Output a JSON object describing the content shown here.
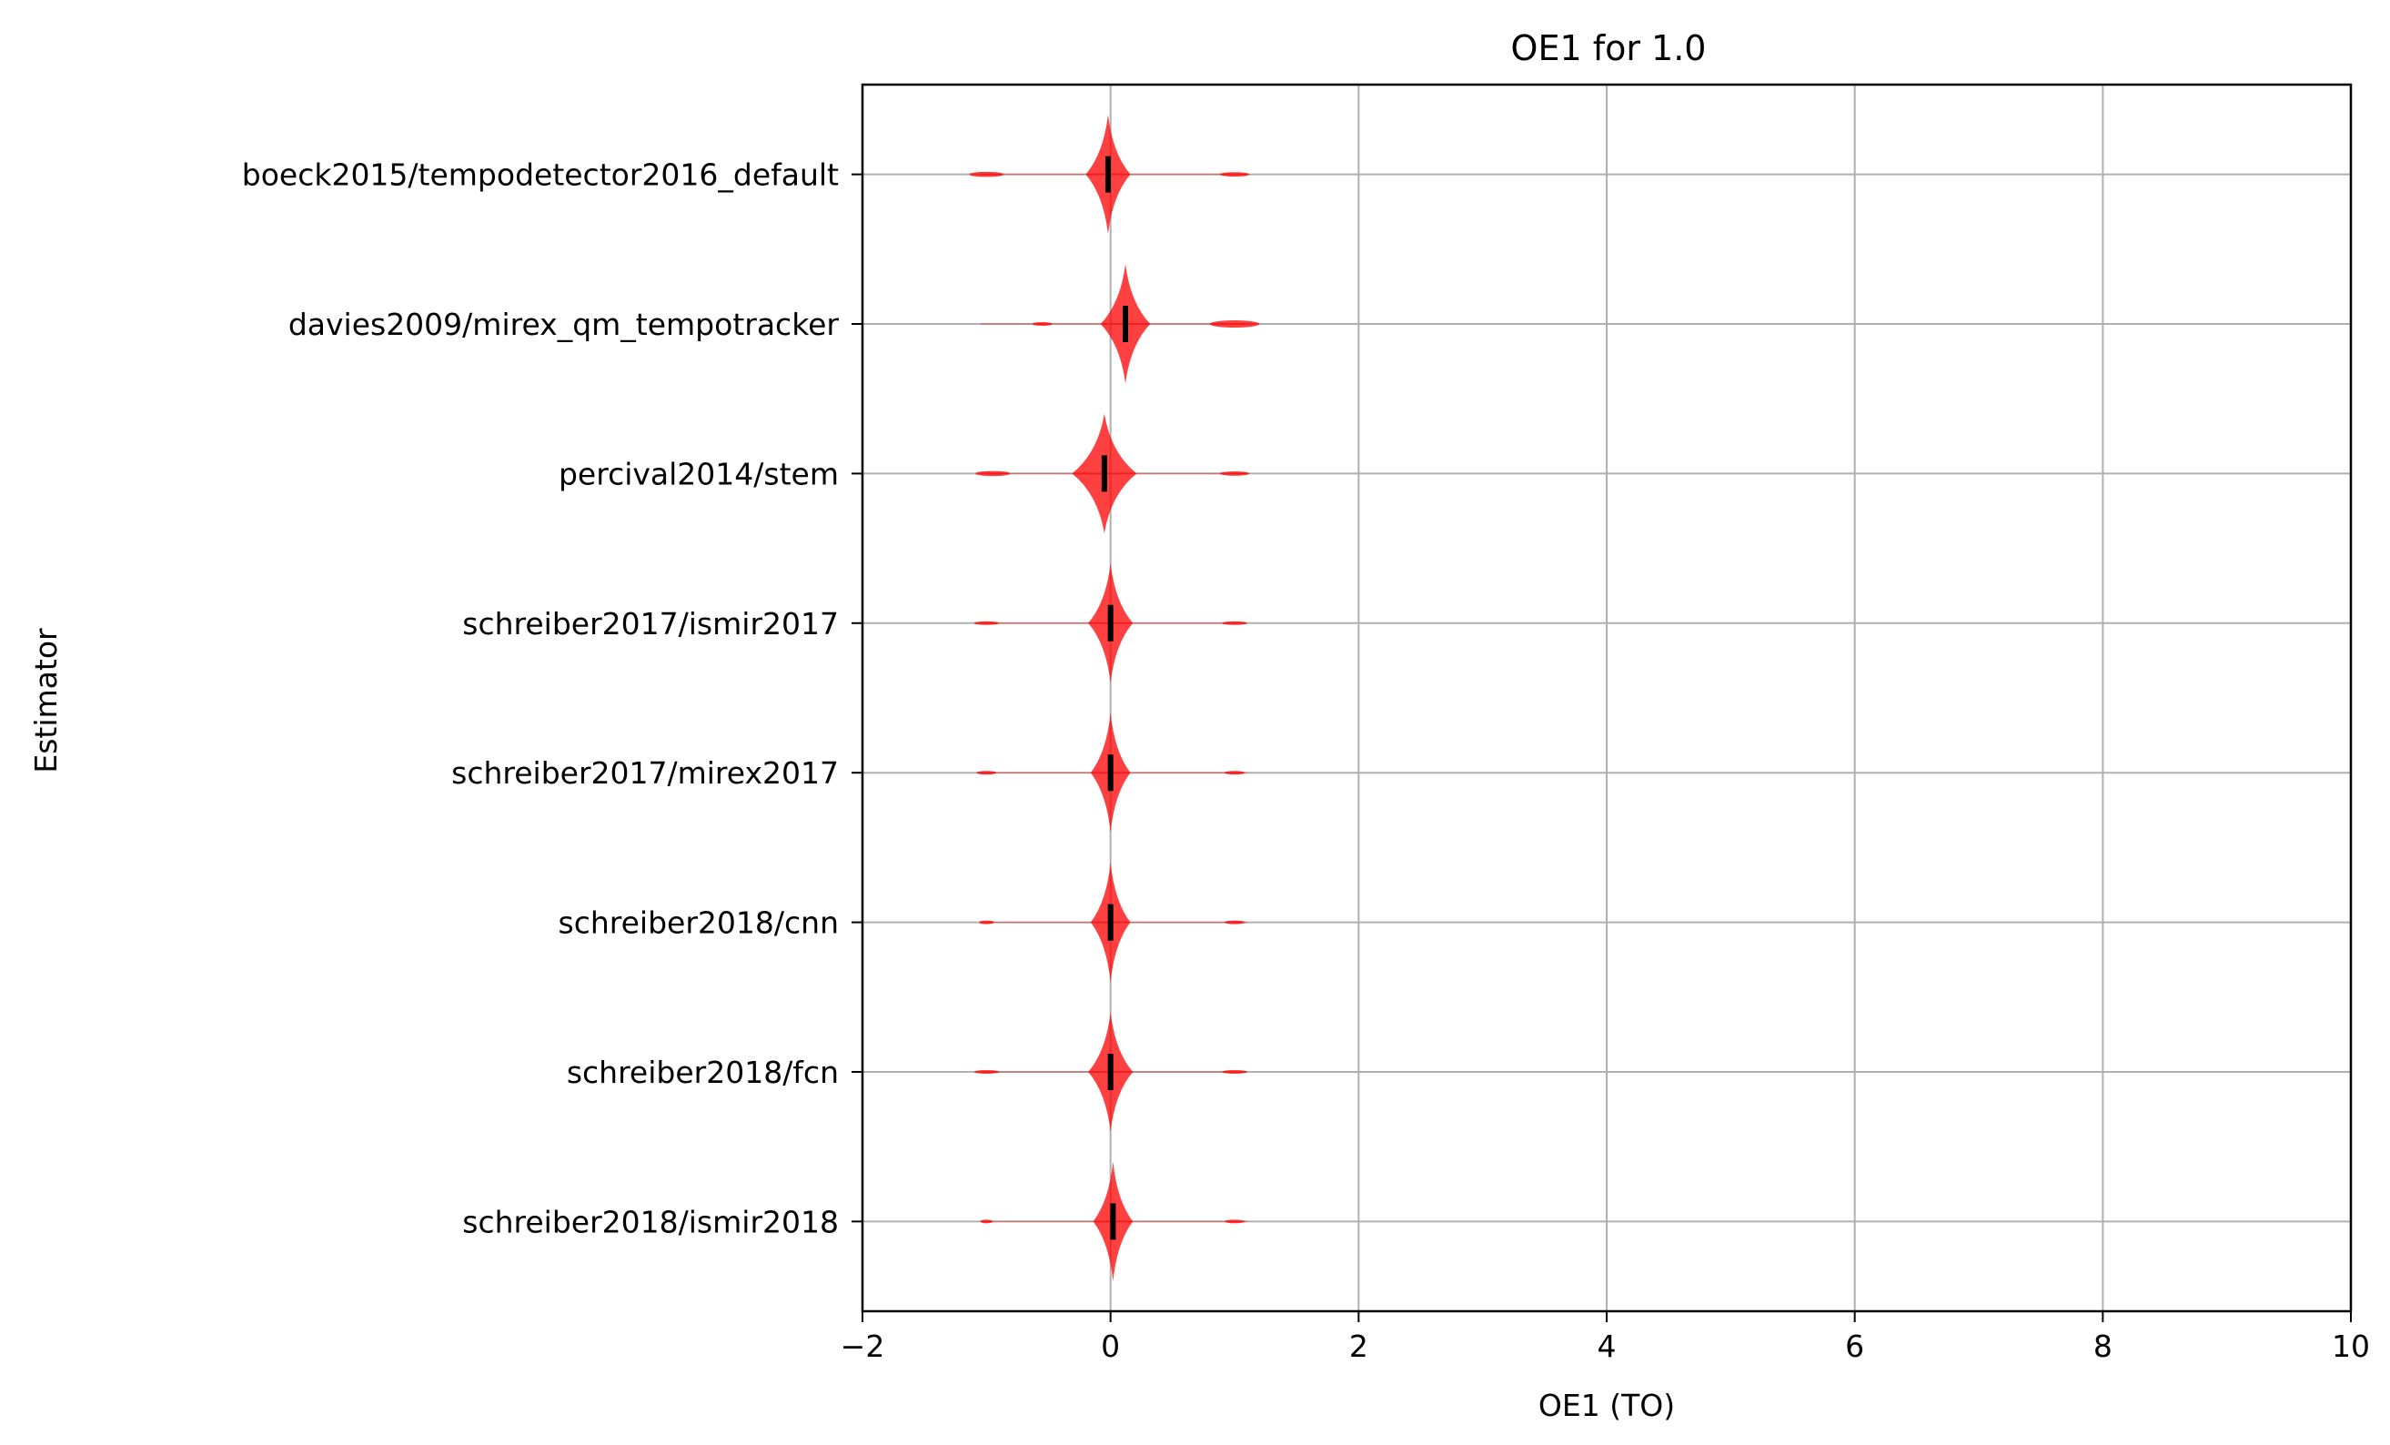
{
  "chart_data": {
    "type": "violin",
    "title": "OE1 for 1.0",
    "xlabel": "OE1 (TO)",
    "ylabel": "Estimator",
    "xlim": [
      -2,
      10
    ],
    "xticks": [
      -2,
      0,
      2,
      4,
      6,
      8,
      10
    ],
    "xtick_labels": [
      "−2",
      "0",
      "2",
      "4",
      "6",
      "8",
      "10"
    ],
    "grid": true,
    "violin_color": "#ff0000",
    "median_color": "#000000",
    "categories": [
      "boeck2015/tempodetector2016_default",
      "davies2009/mirex_qm_tempotracker",
      "percival2014/stem",
      "schreiber2017/ismir2017",
      "schreiber2017/mirex2017",
      "schreiber2018/cnn",
      "schreiber2018/fcn",
      "schreiber2018/ismir2018"
    ],
    "series": [
      {
        "median": -0.02,
        "main_width": 0.18,
        "side_lobes": [
          {
            "x": -1.0,
            "width": 0.14
          },
          {
            "x": 1.0,
            "width": 0.12
          }
        ]
      },
      {
        "median": 0.12,
        "main_width": 0.2,
        "side_lobes": [
          {
            "x": -0.55,
            "width": 0.08
          },
          {
            "x": 1.0,
            "width": 0.2
          }
        ]
      },
      {
        "median": -0.05,
        "main_width": 0.26,
        "side_lobes": [
          {
            "x": -0.95,
            "width": 0.14
          },
          {
            "x": 1.0,
            "width": 0.12
          }
        ]
      },
      {
        "median": 0.0,
        "main_width": 0.18,
        "side_lobes": [
          {
            "x": -1.0,
            "width": 0.1
          },
          {
            "x": 1.0,
            "width": 0.1
          }
        ]
      },
      {
        "median": 0.0,
        "main_width": 0.16,
        "side_lobes": [
          {
            "x": -1.0,
            "width": 0.08
          },
          {
            "x": 1.0,
            "width": 0.08
          }
        ]
      },
      {
        "median": 0.0,
        "main_width": 0.16,
        "side_lobes": [
          {
            "x": -1.0,
            "width": 0.06
          },
          {
            "x": 1.0,
            "width": 0.08
          }
        ]
      },
      {
        "median": 0.0,
        "main_width": 0.18,
        "side_lobes": [
          {
            "x": -1.0,
            "width": 0.1
          },
          {
            "x": 1.0,
            "width": 0.1
          }
        ]
      },
      {
        "median": 0.02,
        "main_width": 0.16,
        "side_lobes": [
          {
            "x": -1.0,
            "width": 0.05
          },
          {
            "x": 1.0,
            "width": 0.08
          }
        ]
      }
    ]
  }
}
